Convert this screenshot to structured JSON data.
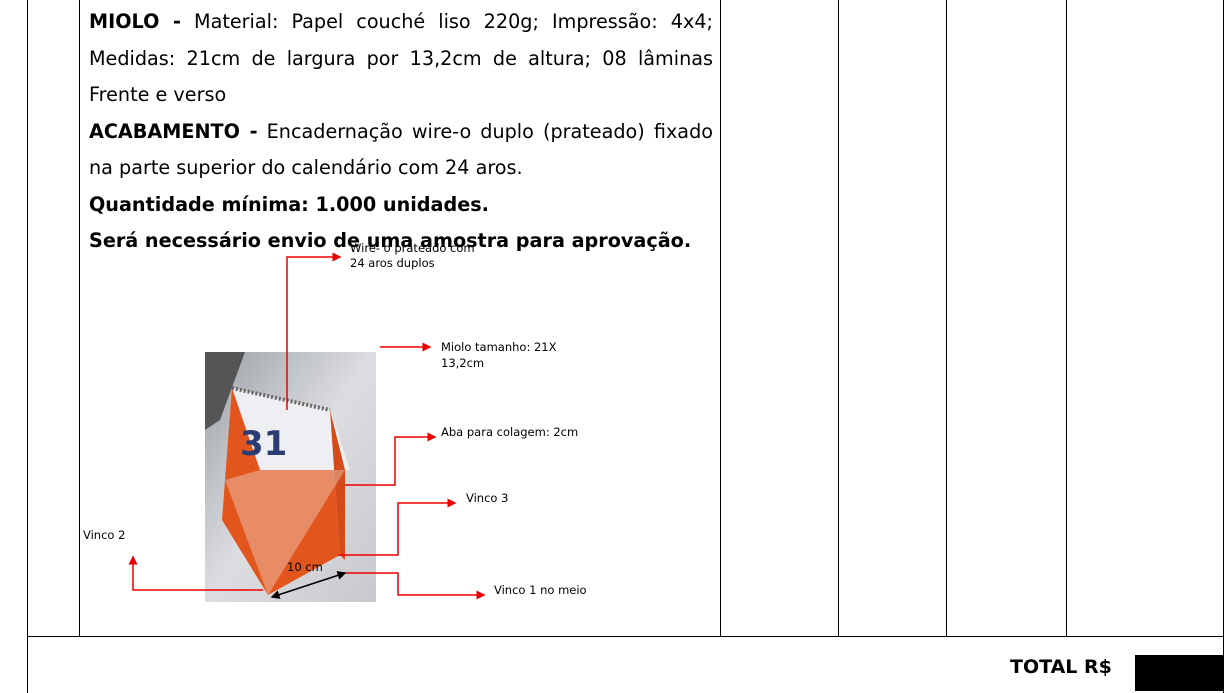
{
  "description": {
    "paragraphs": [
      {
        "label": "MIOLO -",
        "text": "Material: Papel couché liso 220g; Impressão: 4x4; Medidas: 21cm de largura por 13,2cm de altura; 08 lâminas Frente e verso"
      },
      {
        "label": "ACABAMENTO -",
        "text": "Encadernação wire-o duplo (prateado) fixado na parte superior do calendário com 24 aros."
      },
      {
        "label": "Quantidade mínima: 1.000 unidades."
      },
      {
        "label": "Será necessário envio de uma amostra para aprovação."
      }
    ]
  },
  "figure": {
    "annotations": [
      {
        "lines": [
          "Wire- o prateado com",
          "24 aros duplos"
        ]
      },
      {
        "lines": [
          "Miolo tamanho: 21X",
          "13,2cm"
        ]
      },
      {
        "lines": [
          "Aba para colagem: 2cm"
        ]
      },
      {
        "lines": [
          "Vinco 3"
        ]
      },
      {
        "lines": [
          "Vinco 2"
        ]
      },
      {
        "lines": [
          "10 cm"
        ]
      },
      {
        "lines": [
          "Vinco 1 no meio"
        ]
      }
    ]
  },
  "total": {
    "label": "TOTAL R$"
  }
}
